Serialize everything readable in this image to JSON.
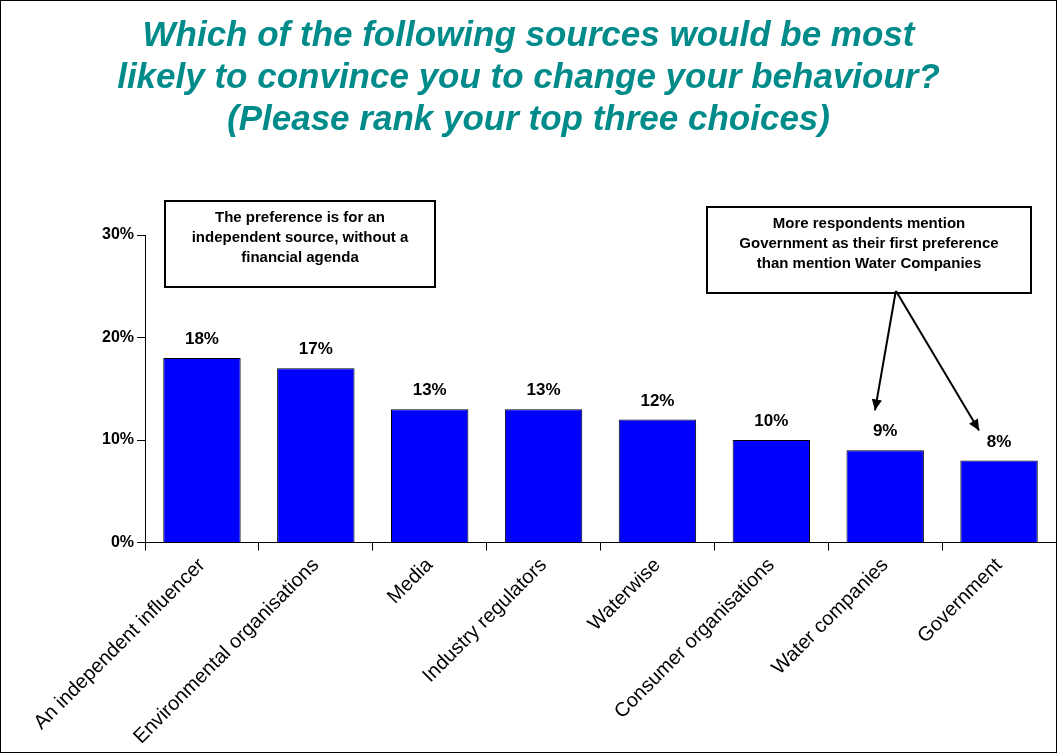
{
  "chart_data": {
    "type": "bar",
    "title": "Which of the following sources would be most\nlikely to convince you to change your behaviour?\n(Please rank your top three choices)",
    "categories": [
      "An independent influencer",
      "Environmental organisations",
      "Media",
      "Industry regulators",
      "Waterwise",
      "Consumer organisations",
      "Water companies",
      "Government"
    ],
    "values": [
      18,
      17,
      13,
      13,
      12,
      10,
      9,
      8
    ],
    "value_labels": [
      "18%",
      "17%",
      "13%",
      "13%",
      "12%",
      "10%",
      "9%",
      "8%"
    ],
    "color": "#0000ff",
    "ylim": [
      0,
      30
    ],
    "yticks": [
      {
        "value": 0,
        "label": "0%"
      },
      {
        "value": 10,
        "label": "10%"
      },
      {
        "value": 20,
        "label": "20%"
      },
      {
        "value": 30,
        "label": "30%"
      }
    ],
    "grid": false,
    "legend": false,
    "annotations": [
      "The preference is for an independent source, without a financial agenda",
      "More respondents mention Government as their first preference than mention Water Companies"
    ]
  }
}
